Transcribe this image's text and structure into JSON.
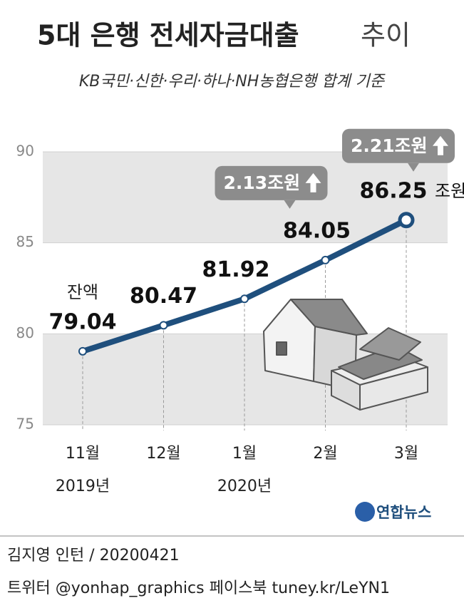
{
  "chart_data": {
    "type": "line",
    "title": "5대 은행 전세자금대출",
    "title_suffix": "추이",
    "subtitle": "KB국민·신한·우리·하나·NH농협은행 합계 기준",
    "categories": [
      "11월",
      "12월",
      "1월",
      "2월",
      "3월"
    ],
    "category_years": [
      "2019년",
      null,
      "2020년",
      null,
      null
    ],
    "values": [
      79.04,
      80.47,
      81.92,
      84.05,
      86.25
    ],
    "balance_label": "잔액",
    "unit": "조원",
    "increase_labels": [
      null,
      null,
      null,
      "2.13조원",
      "2.21조원"
    ],
    "color": "#1f4f7d",
    "ylim": [
      75,
      90
    ],
    "yticks": [
      75,
      80,
      85,
      90
    ],
    "logo": "연합뉴스",
    "credit": "김지영 인턴 / 20200421",
    "social": "트위터 @yonhap_graphics  페이스북 tuney.kr/LeYN1"
  }
}
